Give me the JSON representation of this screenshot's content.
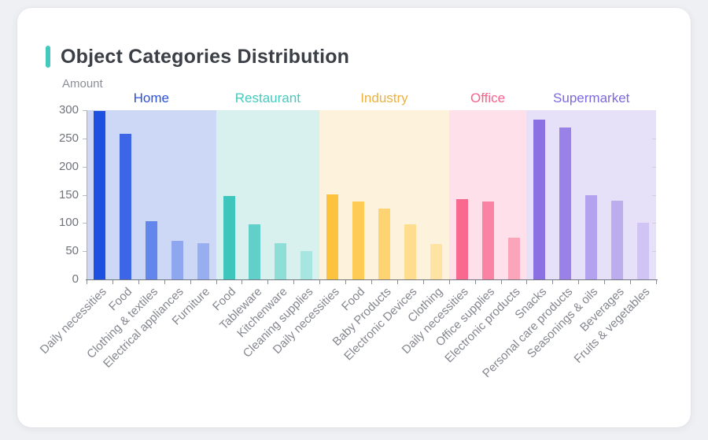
{
  "title": "Object Categories Distribution",
  "accent_color": "#45c8bd",
  "chart_data": {
    "type": "bar",
    "title": "Object Categories Distribution",
    "xlabel": "",
    "ylabel": "Amount",
    "ylim": [
      0,
      300
    ],
    "yticks": [
      0,
      50,
      100,
      150,
      200,
      250,
      300
    ],
    "grid": false,
    "legend_position": "none",
    "groups": [
      {
        "name": "Home",
        "label_color": "#2b50e0",
        "band_color": "#cdd7f6",
        "bars": [
          {
            "label": "Daily necessities",
            "value": 298,
            "color": "#1d4fe1"
          },
          {
            "label": "Food",
            "value": 258,
            "color": "#3c66e6"
          },
          {
            "label": "Clothing & textiles",
            "value": 103,
            "color": "#6286ec"
          },
          {
            "label": "Electrical appliances",
            "value": 69,
            "color": "#8ea7ef"
          },
          {
            "label": "Furniture",
            "value": 64,
            "color": "#97aef0"
          }
        ]
      },
      {
        "name": "Restaurant",
        "label_color": "#45cabe",
        "band_color": "#d9f1ee",
        "bars": [
          {
            "label": "Food",
            "value": 148,
            "color": "#3ec6bc"
          },
          {
            "label": "Tableware",
            "value": 98,
            "color": "#62cfc8"
          },
          {
            "label": "Kitchenware",
            "value": 64,
            "color": "#8eded8"
          },
          {
            "label": "Cleaning supplies",
            "value": 50,
            "color": "#a7e5e0"
          }
        ]
      },
      {
        "name": "Industry",
        "label_color": "#eeb140",
        "band_color": "#fdf2dc",
        "bars": [
          {
            "label": "Daily necessities",
            "value": 151,
            "color": "#fec33e"
          },
          {
            "label": "Food",
            "value": 138,
            "color": "#fecb55"
          },
          {
            "label": "Baby Products",
            "value": 126,
            "color": "#fed472"
          },
          {
            "label": "Electronic Devices",
            "value": 98,
            "color": "#fedd8e"
          },
          {
            "label": "Clothing",
            "value": 63,
            "color": "#fee3a2"
          }
        ]
      },
      {
        "name": "Office",
        "label_color": "#f8628c",
        "band_color": "#fde0ea",
        "bars": [
          {
            "label": "Daily necessities",
            "value": 142,
            "color": "#f9688f"
          },
          {
            "label": "Office supplies",
            "value": 138,
            "color": "#fa82a2"
          },
          {
            "label": "Electronic products",
            "value": 74,
            "color": "#fba5ba"
          }
        ]
      },
      {
        "name": "Supermarket",
        "label_color": "#7d68df",
        "band_color": "#e6e1f8",
        "bars": [
          {
            "label": "Snacks",
            "value": 283,
            "color": "#8a70e3"
          },
          {
            "label": "Personal care products",
            "value": 269,
            "color": "#9981e7"
          },
          {
            "label": "Seasonings & oils",
            "value": 149,
            "color": "#b3a2ed"
          },
          {
            "label": "Beverages",
            "value": 140,
            "color": "#bcadef"
          },
          {
            "label": "Fruits & vegetables",
            "value": 100,
            "color": "#cfc4f3"
          }
        ]
      }
    ]
  }
}
